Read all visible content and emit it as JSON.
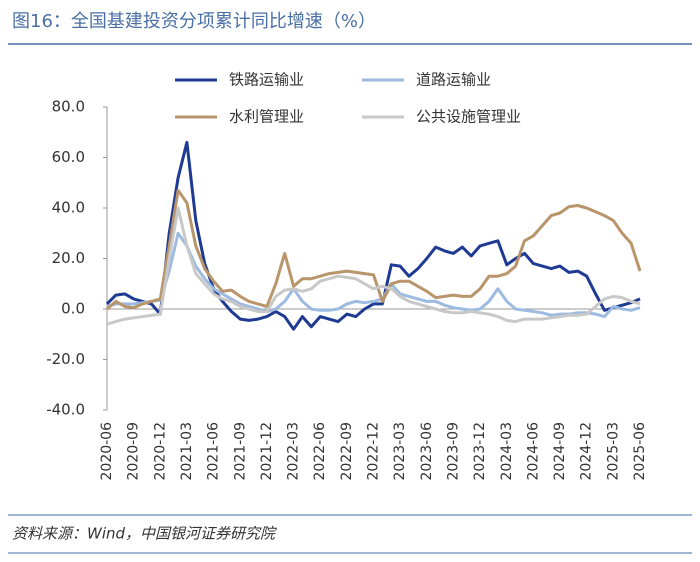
{
  "chart_data": {
    "type": "line",
    "title": "图16：全国基建投资分项累计同比增速（%）",
    "source": "资料来源：Wind，中国银河证券研究院",
    "categories": [
      "2020-06",
      null,
      null,
      "2020-09",
      null,
      null,
      "2020-12",
      null,
      null,
      "2021-03",
      null,
      null,
      "2021-06",
      null,
      null,
      "2021-09",
      null,
      null,
      "2021-12",
      null,
      null,
      "2022-03",
      null,
      null,
      "2022-06",
      null,
      null,
      "2022-09",
      null,
      null,
      "2022-12",
      null,
      null,
      "2023-03",
      null,
      null,
      "2023-06",
      null,
      null,
      "2023-09",
      null,
      null,
      "2023-12",
      null,
      null,
      "2024-03",
      null,
      null,
      "2024-06",
      null,
      null,
      "2024-09",
      null,
      null,
      "2024-12",
      null,
      null,
      "2025-03",
      null,
      null,
      "2025-06"
    ],
    "ylim": [
      -40,
      80
    ],
    "yticks": [
      {
        "value": 80,
        "label": "80.0"
      },
      {
        "value": 60,
        "label": "60.0"
      },
      {
        "value": 40,
        "label": "40.0"
      },
      {
        "value": 20,
        "label": "20.0"
      },
      {
        "value": 0,
        "label": "0.0"
      },
      {
        "value": -20,
        "label": "-20.0"
      },
      {
        "value": -40,
        "label": "-40.0"
      }
    ],
    "grid": false,
    "series": [
      {
        "name": "铁路运输业",
        "color": "#1f3a93",
        "values": [
          2,
          5.5,
          6,
          4,
          3,
          2,
          -2,
          30,
          52,
          66,
          35,
          18,
          8,
          3,
          -1,
          -4,
          -4.5,
          -4,
          -3,
          -1,
          -3,
          -8,
          -3,
          -7,
          -3,
          -4,
          -5,
          -2,
          -3,
          0,
          2,
          2,
          17.5,
          17,
          13,
          16,
          20,
          24.5,
          23,
          22,
          24.5,
          21,
          25,
          26,
          27,
          17.5,
          20,
          22,
          18,
          17,
          16,
          17,
          14.5,
          15,
          13,
          6,
          -0.5,
          0.5,
          1.5,
          2.5,
          4
        ]
      },
      {
        "name": "道路运输业",
        "color": "#9dbbe0",
        "values": [
          1,
          2,
          2,
          2,
          2.5,
          3,
          3.5,
          15,
          30,
          25,
          17,
          12,
          8,
          6,
          4,
          2,
          1,
          0,
          -1,
          0,
          3,
          8,
          3,
          0,
          -0.5,
          -0.5,
          0,
          2,
          3,
          2.5,
          3,
          4,
          10,
          6,
          5,
          4,
          3,
          3,
          1.5,
          0.5,
          0,
          -0.5,
          0,
          3,
          8,
          3,
          0,
          -0.5,
          -1,
          -1.5,
          -2.5,
          -2,
          -2,
          -1.5,
          -1.5,
          -2,
          -3,
          1,
          0,
          -0.5,
          0.5
        ]
      },
      {
        "name": "水利管理业",
        "color": "#b8956a",
        "values": [
          0,
          3,
          1,
          0.5,
          2,
          3,
          4,
          25,
          47,
          42,
          25,
          16,
          11,
          7,
          7.5,
          5,
          3,
          2,
          1,
          10,
          22,
          9,
          12,
          12,
          13,
          14,
          14.5,
          15,
          14.5,
          14,
          13.5,
          3,
          10,
          11,
          11,
          9,
          7,
          4.5,
          5,
          5.5,
          5,
          5,
          8,
          13,
          13,
          14,
          17,
          27,
          29,
          33,
          37,
          38,
          40.5,
          41,
          40,
          38.5,
          37,
          35,
          30,
          26,
          15
        ]
      },
      {
        "name": "公共设施管理业",
        "color": "#c8c8c8",
        "values": [
          -6,
          -5,
          -4,
          -3.5,
          -3,
          -2.5,
          -2,
          20,
          40,
          25,
          14,
          10,
          6,
          4,
          3,
          1,
          0,
          -1,
          -1,
          5,
          7.5,
          8,
          7,
          8,
          11,
          12,
          13,
          12.5,
          12,
          10,
          8,
          9,
          8,
          5,
          3,
          2,
          1,
          0,
          -1,
          -1.5,
          -1.5,
          -1,
          -1.5,
          -2,
          -3,
          -4.5,
          -5,
          -4,
          -4,
          -4,
          -3.5,
          -3,
          -2.5,
          -2.5,
          -2,
          1,
          4,
          5,
          4.5,
          3,
          2
        ]
      }
    ]
  }
}
